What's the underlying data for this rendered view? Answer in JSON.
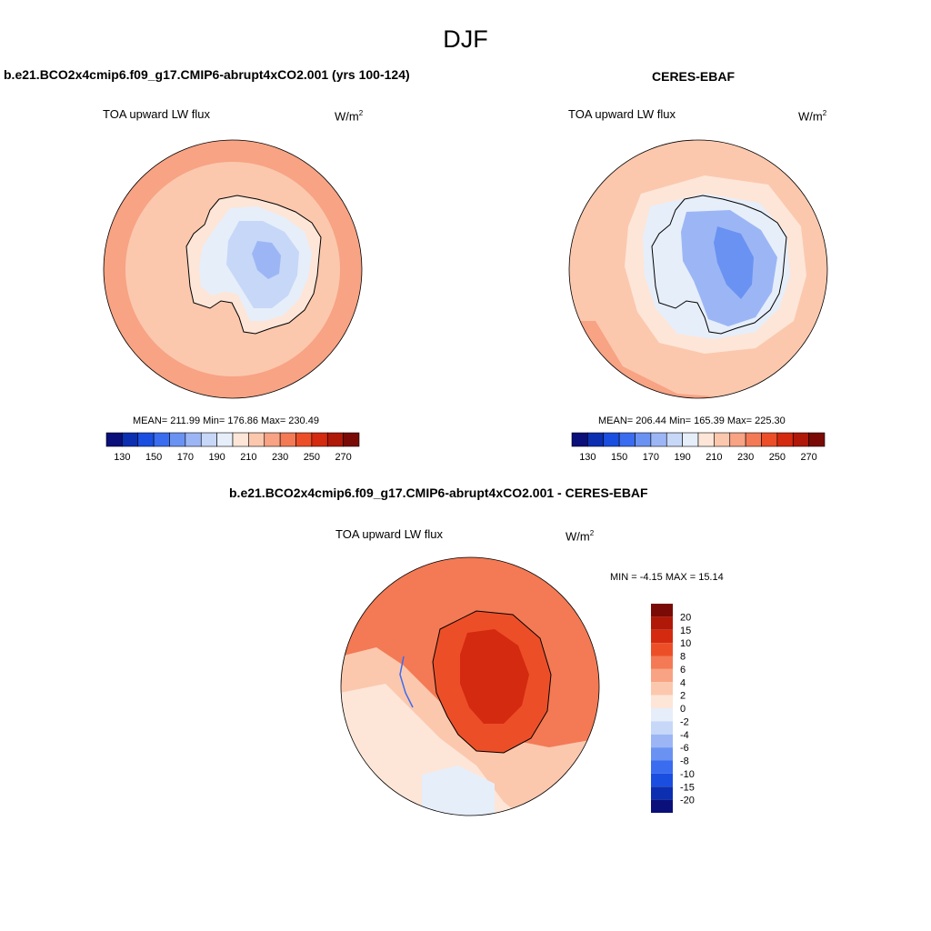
{
  "season": "DJF",
  "panels": [
    {
      "case_title": "b.e21.BCO2x4cmip6.f09_g17.CMIP6-abrupt4xCO2.001 (yrs 100-124)",
      "subtitle": "TOA upward LW flux",
      "units_base": "W/m",
      "units_exp": "2",
      "stats": "MEAN= 211.99  Min= 176.86  Max= 230.49"
    },
    {
      "case_title": "CERES-EBAF",
      "subtitle": "TOA upward LW flux",
      "units_base": "W/m",
      "units_exp": "2",
      "stats": "MEAN= 206.44  Min= 165.39  Max= 225.30"
    },
    {
      "case_title": "b.e21.BCO2x4cmip6.f09_g17.CMIP6-abrupt4xCO2.001 - CERES-EBAF",
      "subtitle": "TOA upward LW flux",
      "units_base": "W/m",
      "units_exp": "2",
      "stats": "MIN =  -4.15 MAX =  15.14"
    }
  ],
  "abs_colorbar": {
    "tick_labels": [
      "130",
      "150",
      "170",
      "190",
      "210",
      "230",
      "250",
      "270"
    ],
    "colors": [
      "#0a0f7a",
      "#0b2fb0",
      "#1a4ee0",
      "#3a6cf0",
      "#6a92f2",
      "#9cb6f5",
      "#c7d7f7",
      "#e6eefa",
      "#fde6d8",
      "#fbc8ae",
      "#f7a384",
      "#f37a55",
      "#ec4f28",
      "#d42a10",
      "#b01808",
      "#7a0a05"
    ]
  },
  "diff_colorbar": {
    "tick_labels": [
      "20",
      "15",
      "10",
      "8",
      "6",
      "4",
      "2",
      "0",
      "-2",
      "-4",
      "-6",
      "-8",
      "-10",
      "-15",
      "-20"
    ],
    "colors": [
      "#7a0a05",
      "#b01808",
      "#d42a10",
      "#ec4f28",
      "#f37a55",
      "#f7a384",
      "#fbc8ae",
      "#fde6d8",
      "#e6eefa",
      "#c7d7f7",
      "#9cb6f5",
      "#6a92f2",
      "#3a6cf0",
      "#1a4ee0",
      "#0b2fb0",
      "#0a0f7a"
    ]
  },
  "chart_data": [
    {
      "type": "heatmap",
      "projection": "south-polar-stereographic",
      "title": "b.e21.BCO2x4cmip6.f09_g17.CMIP6-abrupt4xCO2.001 (yrs 100-124)",
      "variable": "TOA upward LW flux",
      "units": "W/m2",
      "mean": 211.99,
      "min": 176.86,
      "max": 230.49,
      "contour_levels": [
        130,
        140,
        150,
        160,
        170,
        180,
        190,
        200,
        210,
        220,
        230,
        240,
        250,
        260,
        270
      ],
      "colorbar_ticks": [
        130,
        150,
        170,
        190,
        210,
        230,
        250,
        270
      ]
    },
    {
      "type": "heatmap",
      "projection": "south-polar-stereographic",
      "title": "CERES-EBAF",
      "variable": "TOA upward LW flux",
      "units": "W/m2",
      "mean": 206.44,
      "min": 165.39,
      "max": 225.3,
      "contour_levels": [
        130,
        140,
        150,
        160,
        170,
        180,
        190,
        200,
        210,
        220,
        230,
        240,
        250,
        260,
        270
      ],
      "colorbar_ticks": [
        130,
        150,
        170,
        190,
        210,
        230,
        250,
        270
      ]
    },
    {
      "type": "heatmap",
      "projection": "south-polar-stereographic",
      "title": "b.e21.BCO2x4cmip6.f09_g17.CMIP6-abrupt4xCO2.001 - CERES-EBAF",
      "variable": "TOA upward LW flux",
      "units": "W/m2",
      "min": -4.15,
      "max": 15.14,
      "contour_levels": [
        -20,
        -15,
        -10,
        -8,
        -6,
        -4,
        -2,
        0,
        2,
        4,
        6,
        8,
        10,
        15,
        20
      ]
    }
  ]
}
